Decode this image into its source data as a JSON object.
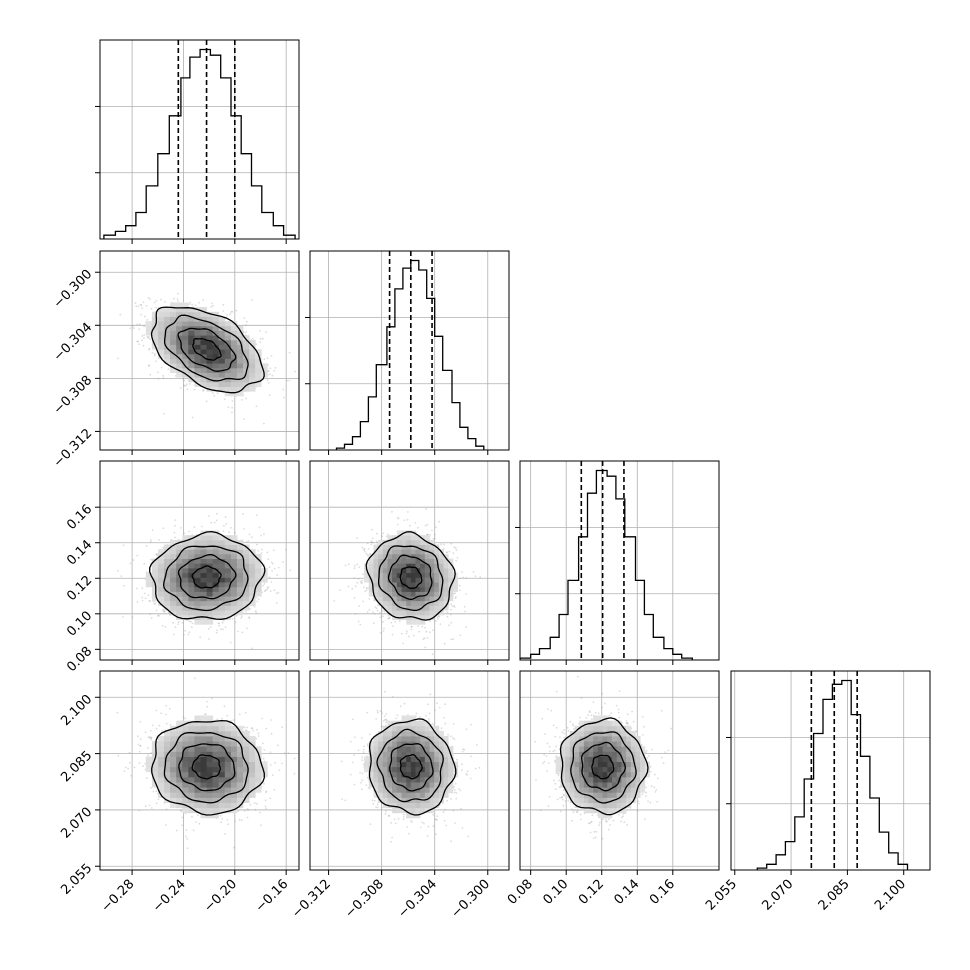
{
  "chart_data": {
    "type": "corner",
    "title": "",
    "parameters": [
      {
        "label": "",
        "range": [
          -0.305,
          -0.15
        ],
        "ticks": [
          -0.28,
          -0.24,
          -0.2,
          -0.16
        ],
        "tick_labels": [
          "−0.28",
          "−0.24",
          "−0.20",
          "−0.16"
        ],
        "center": -0.222,
        "sigma": 0.0215,
        "quantiles": [
          -0.244,
          -0.222,
          -0.2
        ],
        "hist_bin_edges": [
          -0.302,
          -0.293,
          -0.285,
          -0.277,
          -0.269,
          -0.26,
          -0.251,
          -0.242,
          -0.235,
          -0.227,
          -0.219,
          -0.211,
          -0.203,
          -0.195,
          -0.187,
          -0.179,
          -0.17,
          -0.162,
          -0.153
        ],
        "hist_counts": [
          0.02,
          0.04,
          0.07,
          0.14,
          0.28,
          0.45,
          0.65,
          0.85,
          0.96,
          1.0,
          0.97,
          0.85,
          0.65,
          0.45,
          0.28,
          0.14,
          0.07,
          0.02
        ],
        "hist_ylim": [
          0,
          1.05
        ]
      },
      {
        "label": "",
        "range": [
          -0.3134,
          -0.2984
        ],
        "ticks": [
          -0.312,
          -0.308,
          -0.304,
          -0.3
        ],
        "tick_labels": [
          "−0.312",
          "−0.308",
          "−0.304",
          "−0.300"
        ],
        "center": -0.3058,
        "sigma": 0.0016,
        "quantiles": [
          -0.3074,
          -0.3058,
          -0.3042
        ],
        "hist_bin_edges": [
          -0.3114,
          -0.3108,
          -0.3102,
          -0.3096,
          -0.309,
          -0.3084,
          -0.3076,
          -0.307,
          -0.3064,
          -0.3058,
          -0.3052,
          -0.3046,
          -0.304,
          -0.3034,
          -0.3027,
          -0.3021,
          -0.3015,
          -0.3009,
          -0.3003
        ],
        "hist_counts": [
          0.01,
          0.03,
          0.07,
          0.15,
          0.28,
          0.45,
          0.65,
          0.85,
          0.96,
          1.0,
          0.95,
          0.8,
          0.6,
          0.42,
          0.25,
          0.12,
          0.06,
          0.02
        ],
        "hist_ylim": [
          0,
          1.05
        ]
      },
      {
        "label": "",
        "range": [
          0.074,
          0.186
        ],
        "ticks": [
          0.08,
          0.1,
          0.12,
          0.14,
          0.16
        ],
        "tick_labels": [
          "0.08",
          "0.10",
          "0.12",
          "0.14",
          "0.16"
        ],
        "center": 0.1205,
        "sigma": 0.012,
        "quantiles": [
          0.1085,
          0.1205,
          0.1325
        ],
        "hist_bin_edges": [
          0.074,
          0.08,
          0.085,
          0.091,
          0.096,
          0.101,
          0.107,
          0.112,
          0.117,
          0.123,
          0.128,
          0.133,
          0.139,
          0.144,
          0.149,
          0.155,
          0.16,
          0.165,
          0.171
        ],
        "hist_counts": [
          0.01,
          0.03,
          0.06,
          0.12,
          0.24,
          0.42,
          0.65,
          0.88,
          1.0,
          0.97,
          0.85,
          0.65,
          0.42,
          0.24,
          0.12,
          0.06,
          0.03,
          0.01
        ],
        "hist_ylim": [
          0,
          1.05
        ]
      },
      {
        "label": "",
        "range": [
          2.054,
          2.107
        ],
        "ticks": [
          2.055,
          2.07,
          2.085,
          2.1
        ],
        "tick_labels": [
          "2.055",
          "2.070",
          "2.085",
          "2.100"
        ],
        "center": 2.0815,
        "sigma": 0.0062,
        "quantiles": [
          2.0754,
          2.0815,
          2.0876
        ],
        "hist_bin_edges": [
          2.061,
          2.0635,
          2.066,
          2.0685,
          2.071,
          2.0735,
          2.076,
          2.0785,
          2.081,
          2.0835,
          2.086,
          2.0885,
          2.091,
          2.0935,
          2.096,
          2.0985,
          2.101
        ],
        "hist_counts": [
          0.01,
          0.03,
          0.08,
          0.15,
          0.28,
          0.48,
          0.72,
          0.9,
          0.98,
          1.0,
          0.82,
          0.6,
          0.38,
          0.2,
          0.09,
          0.03
        ],
        "hist_ylim": [
          0,
          1.05
        ]
      }
    ],
    "correlations": {
      "1-0": -0.45,
      "2-0": 0.05,
      "2-1": -0.1,
      "3-0": -0.05,
      "3-1": -0.05,
      "3-2": -0.02
    },
    "contour_levels": [
      0.5,
      1.0,
      1.5,
      2.0
    ],
    "colors": {
      "line": "#000000",
      "grid": "#b0b0b0",
      "point": "#9a9a9a",
      "density_min": "#f5f5f5",
      "density_max": "#3a3a3a"
    },
    "grid": true,
    "legend": "none"
  }
}
